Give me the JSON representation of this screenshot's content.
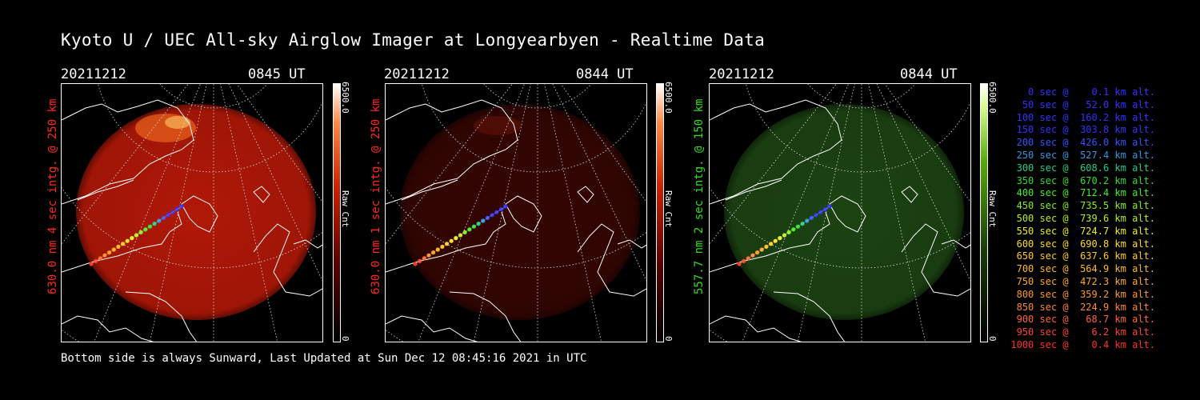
{
  "title": "Kyoto U / UEC All-sky Airglow Imager at Longyearbyen - Realtime Data",
  "footer": "Bottom side is always Sunward, Last Updated at Sun Dec 12 08:45:16 2021 in UTC",
  "panels": [
    {
      "date": "20211212",
      "time": "0845 UT",
      "side_label": "630.0 nm 4 sec intg. @ 250 km",
      "side_color": "#ff2a1a",
      "cbar_top": "6500.0",
      "cbar_unit": "Raw Cnt",
      "cbar_bottom": "0",
      "glow": "#c01a08",
      "glow_opacity": 0.92
    },
    {
      "date": "20211212",
      "time": "0844 UT",
      "side_label": "630.0 nm 1 sec intg. @ 250 km",
      "side_color": "#ff2a1a",
      "cbar_top": "6500.0",
      "cbar_unit": "Raw Cnt",
      "cbar_bottom": "0",
      "glow": "#3a0603",
      "glow_opacity": 0.9
    },
    {
      "date": "20211212",
      "time": "0844 UT",
      "side_label": "557.7 nm 2 sec intg. @ 150 km",
      "side_color": "#33dd22",
      "cbar_top": "6500.0",
      "cbar_unit": "Raw Cnt",
      "cbar_bottom": "0",
      "glow": "#1f4a14",
      "glow_opacity": 0.9
    }
  ],
  "legend": [
    {
      "text": "   0 sec @    0.1 km alt.",
      "color": "#3333ff"
    },
    {
      "text": "  50 sec @   52.0 km alt.",
      "color": "#3333ff"
    },
    {
      "text": " 100 sec @  160.2 km alt.",
      "color": "#3333ff"
    },
    {
      "text": " 150 sec @  303.8 km alt.",
      "color": "#3333ff"
    },
    {
      "text": " 200 sec @  426.0 km alt.",
      "color": "#3355ff"
    },
    {
      "text": " 250 sec @  527.4 km alt.",
      "color": "#3399dd"
    },
    {
      "text": " 300 sec @  608.6 km alt.",
      "color": "#22cc88"
    },
    {
      "text": " 350 sec @  670.2 km alt.",
      "color": "#33dd33"
    },
    {
      "text": " 400 sec @  712.4 km alt.",
      "color": "#44ee22"
    },
    {
      "text": " 450 sec @  735.5 km alt.",
      "color": "#88ee22"
    },
    {
      "text": " 500 sec @  739.6 km alt.",
      "color": "#bbee22"
    },
    {
      "text": " 550 sec @  724.7 km alt.",
      "color": "#eeee22"
    },
    {
      "text": " 600 sec @  690.8 km alt.",
      "color": "#ffdd22"
    },
    {
      "text": " 650 sec @  637.6 km alt.",
      "color": "#ffcc22"
    },
    {
      "text": " 700 sec @  564.9 km alt.",
      "color": "#ffbb22"
    },
    {
      "text": " 750 sec @  472.3 km alt.",
      "color": "#ffaa22"
    },
    {
      "text": " 800 sec @  359.2 km alt.",
      "color": "#ff9922"
    },
    {
      "text": " 850 sec @  224.9 km alt.",
      "color": "#ff8833"
    },
    {
      "text": " 900 sec @   68.7 km alt.",
      "color": "#ff6633"
    },
    {
      "text": " 950 sec @    6.2 km alt.",
      "color": "#ff4433"
    },
    {
      "text": "1000 sec @    0.4 km alt.",
      "color": "#ff3322"
    }
  ]
}
